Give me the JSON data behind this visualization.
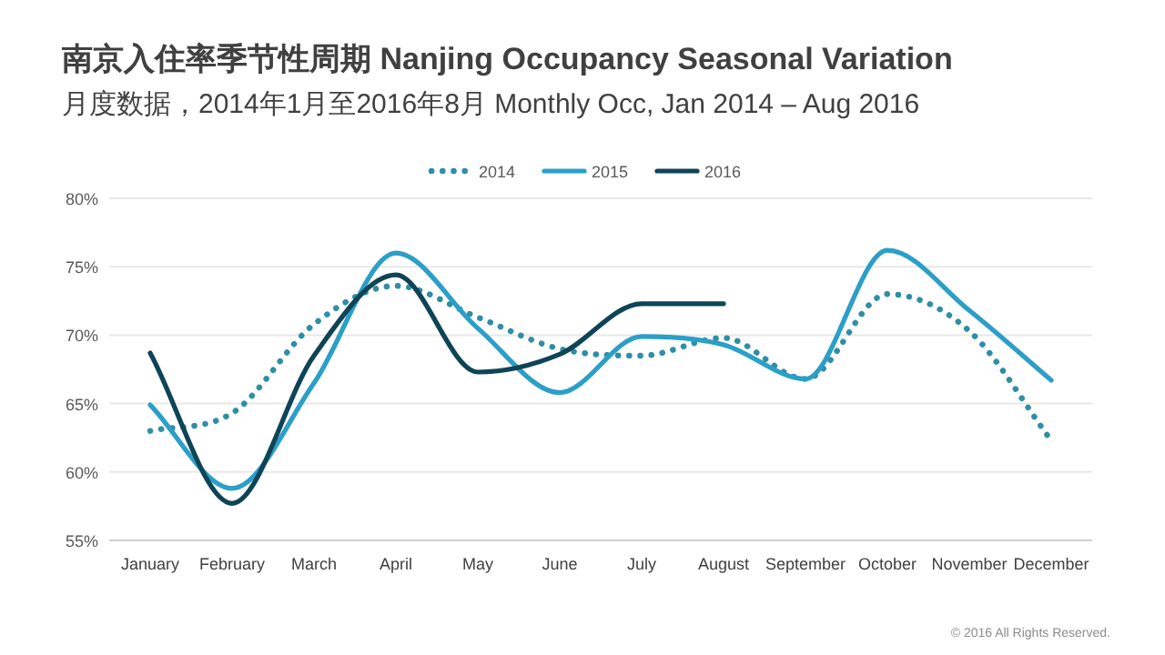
{
  "chart_data": {
    "type": "line",
    "title": "南京入住率季节性周期 Nanjing Occupancy Seasonal Variation",
    "subtitle": "月度数据，2014年1月至2016年8月  Monthly Occ, Jan 2014 – Aug 2016",
    "categories": [
      "January",
      "February",
      "March",
      "April",
      "May",
      "June",
      "July",
      "August",
      "September",
      "October",
      "November",
      "December"
    ],
    "series": [
      {
        "name": "2014",
        "color": "#2f8ea6",
        "line_style": "dotted",
        "values": [
          63.0,
          64.3,
          70.8,
          73.6,
          71.3,
          69.0,
          68.5,
          69.8,
          66.8,
          73.0,
          70.3,
          62.3
        ]
      },
      {
        "name": "2015",
        "color": "#2b9fc7",
        "line_style": "solid",
        "values": [
          64.9,
          58.8,
          66.5,
          76.0,
          70.5,
          65.8,
          69.9,
          69.3,
          66.8,
          76.2,
          71.8,
          66.7
        ]
      },
      {
        "name": "2016",
        "color": "#0e4456",
        "line_style": "solid",
        "values": [
          68.7,
          57.7,
          68.5,
          74.4,
          67.3,
          68.6,
          72.3,
          72.3,
          null,
          null,
          null,
          null
        ]
      }
    ],
    "ylim": [
      55,
      80
    ],
    "yticks": [
      {
        "value": 55,
        "label": "55%"
      },
      {
        "value": 60,
        "label": "60%"
      },
      {
        "value": 65,
        "label": "65%"
      },
      {
        "value": 70,
        "label": "70%"
      },
      {
        "value": 75,
        "label": "75%"
      },
      {
        "value": 80,
        "label": "80%"
      }
    ],
    "grid": "y",
    "legend": "top",
    "marker": "none",
    "annotations": [
      "© 2016 All Rights Reserved."
    ]
  }
}
